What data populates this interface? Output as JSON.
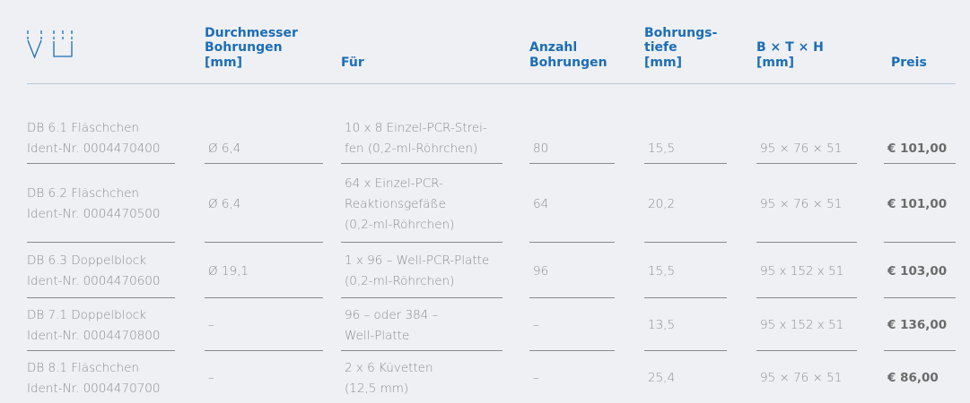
{
  "table": {
    "headers": [
      [
        "Durchmesser",
        "Bohrungen",
        "[mm]"
      ],
      [
        "Für"
      ],
      [
        "Anzahl",
        "Bohrungen"
      ],
      [
        "Bohrungs-",
        "tiefe",
        "[mm]"
      ],
      [
        "B × T × H",
        "[mm]"
      ],
      [
        "Preis"
      ]
    ],
    "rows": [
      [
        [
          "DB 6.1 Fläschchen",
          "Ident-Nr. 0004470400"
        ],
        [
          "Ø 6,4"
        ],
        [
          "10 x 8 Einzel-PCR-Strei-",
          "fen (0,2-ml-Röhrchen)"
        ],
        [
          "80"
        ],
        [
          "15,5"
        ],
        [
          "95 × 76 × 51"
        ],
        [
          "€ 101,00"
        ]
      ],
      [
        [
          "DB 6.2 Fläschchen",
          "Ident-Nr. 0004470500"
        ],
        [
          "Ø 6,4"
        ],
        [
          "64 x Einzel-PCR-",
          "Reaktionsgefäße",
          "(0,2-ml-Röhrchen)"
        ],
        [
          "64"
        ],
        [
          "20,2"
        ],
        [
          "95 × 76 × 51"
        ],
        [
          "€ 101,00"
        ]
      ],
      [
        [
          "DB 6.3 Doppelblock",
          "Ident-Nr. 0004470600"
        ],
        [
          "Ø 19,1"
        ],
        [
          "1 x 96 – Well-PCR-Platte",
          "(0,2-ml-Röhrchen)"
        ],
        [
          "96"
        ],
        [
          "15,5"
        ],
        [
          "95 x 152 x 51"
        ],
        [
          "€ 103,00"
        ]
      ],
      [
        [
          "DB 7.1 Doppelblock",
          "Ident-Nr. 0004470800"
        ],
        [
          "–"
        ],
        [
          "96 – oder 384 –",
          "Well-Platte"
        ],
        [
          "–"
        ],
        [
          "13,5"
        ],
        [
          "95 x 152 x 51"
        ],
        [
          "€ 136,00"
        ]
      ],
      [
        [
          "DB 8.1 Fläschchen",
          "Ident-Nr. 0004470700"
        ],
        [
          "–"
        ],
        [
          "2 x 6 Küvetten",
          "(12,5 mm)"
        ],
        [
          "–"
        ],
        [
          "25,4"
        ],
        [
          "95 × 76 × 51"
        ],
        [
          "€ 86,00"
        ]
      ]
    ]
  }
}
